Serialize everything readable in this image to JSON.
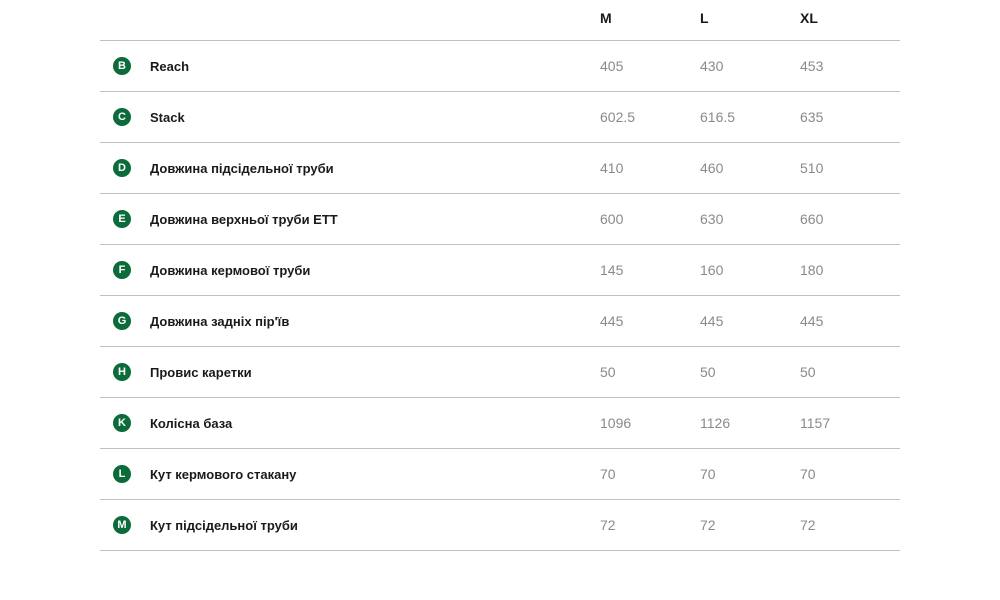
{
  "table": {
    "badge_bg": "#0b6b3a",
    "badge_fg": "#ffffff",
    "label_color": "#1a1a1a",
    "value_color": "#8a8a8a",
    "border_color": "#bfbfbf",
    "columns": [
      "M",
      "L",
      "XL"
    ],
    "rows": [
      {
        "badge": "B",
        "label": "Reach",
        "values": [
          "405",
          "430",
          "453"
        ]
      },
      {
        "badge": "C",
        "label": "Stack",
        "values": [
          "602.5",
          "616.5",
          "635"
        ]
      },
      {
        "badge": "D",
        "label": "Довжина підсідельної труби",
        "values": [
          "410",
          "460",
          "510"
        ]
      },
      {
        "badge": "E",
        "label": "Довжина верхньої труби ETT",
        "values": [
          "600",
          "630",
          "660"
        ]
      },
      {
        "badge": "F",
        "label": "Довжина кермової труби",
        "values": [
          "145",
          "160",
          "180"
        ]
      },
      {
        "badge": "G",
        "label": "Довжина задніх пір'їв",
        "values": [
          "445",
          "445",
          "445"
        ]
      },
      {
        "badge": "H",
        "label": "Провис каретки",
        "values": [
          "50",
          "50",
          "50"
        ]
      },
      {
        "badge": "K",
        "label": "Колісна база",
        "values": [
          "1096",
          "1126",
          "1157"
        ]
      },
      {
        "badge": "L",
        "label": "Кут кермового стакану",
        "values": [
          "70",
          "70",
          "70"
        ]
      },
      {
        "badge": "M",
        "label": "Кут підсідельної труби",
        "values": [
          "72",
          "72",
          "72"
        ]
      }
    ]
  }
}
